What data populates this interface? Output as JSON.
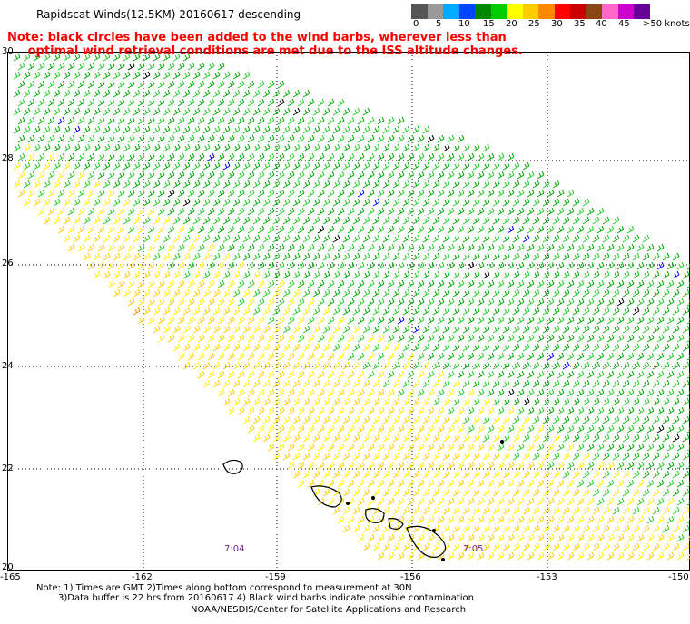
{
  "title": "Rapidscat Winds(12.5KM) 20160617 descending",
  "note_lines": [
    "Note: black circles have been added to the wind barbs, wherever less than",
    "     optimal wind retrieval conditions are met due to the ISS altitude changes."
  ],
  "legend": {
    "colors": [
      "#555555",
      "#999999",
      "#00aaff",
      "#0044ff",
      "#008800",
      "#00cc00",
      "#ffff00",
      "#ffcc00",
      "#ff8800",
      "#ff0000",
      "#cc0000",
      "#8b4513",
      "#ff66cc",
      "#cc00cc",
      "#660099"
    ],
    "labels": [
      "0",
      "5",
      "10",
      "15",
      "20",
      "25",
      "30",
      "35",
      "40",
      "45",
      ">50 knots"
    ]
  },
  "lat_labels": [
    "30",
    "28",
    "26",
    "24",
    "22",
    "20"
  ],
  "lon_labels": [
    "-165",
    "-162",
    "-159",
    "-156",
    "-153",
    "-150"
  ],
  "times": [
    "7:04",
    "7:05"
  ],
  "footer": [
    "Note: 1) Times are GMT 2)Times along bottom correspond to measurement at 30N",
    "3)Data buffer is 22 hrs from 20160617 4) Black wind barbs indicate possible contamination",
    "NOAA/NESDIS/Center for Satellite Applications and Research"
  ],
  "barb_colors": {
    "green": "#00aa00",
    "lightgreen": "#22cc22",
    "yellow": "#ffee00",
    "gold": "#ffcc00",
    "orange": "#ff8800",
    "red": "#ff2200",
    "blue": "#0000ff",
    "black": "#000000"
  }
}
